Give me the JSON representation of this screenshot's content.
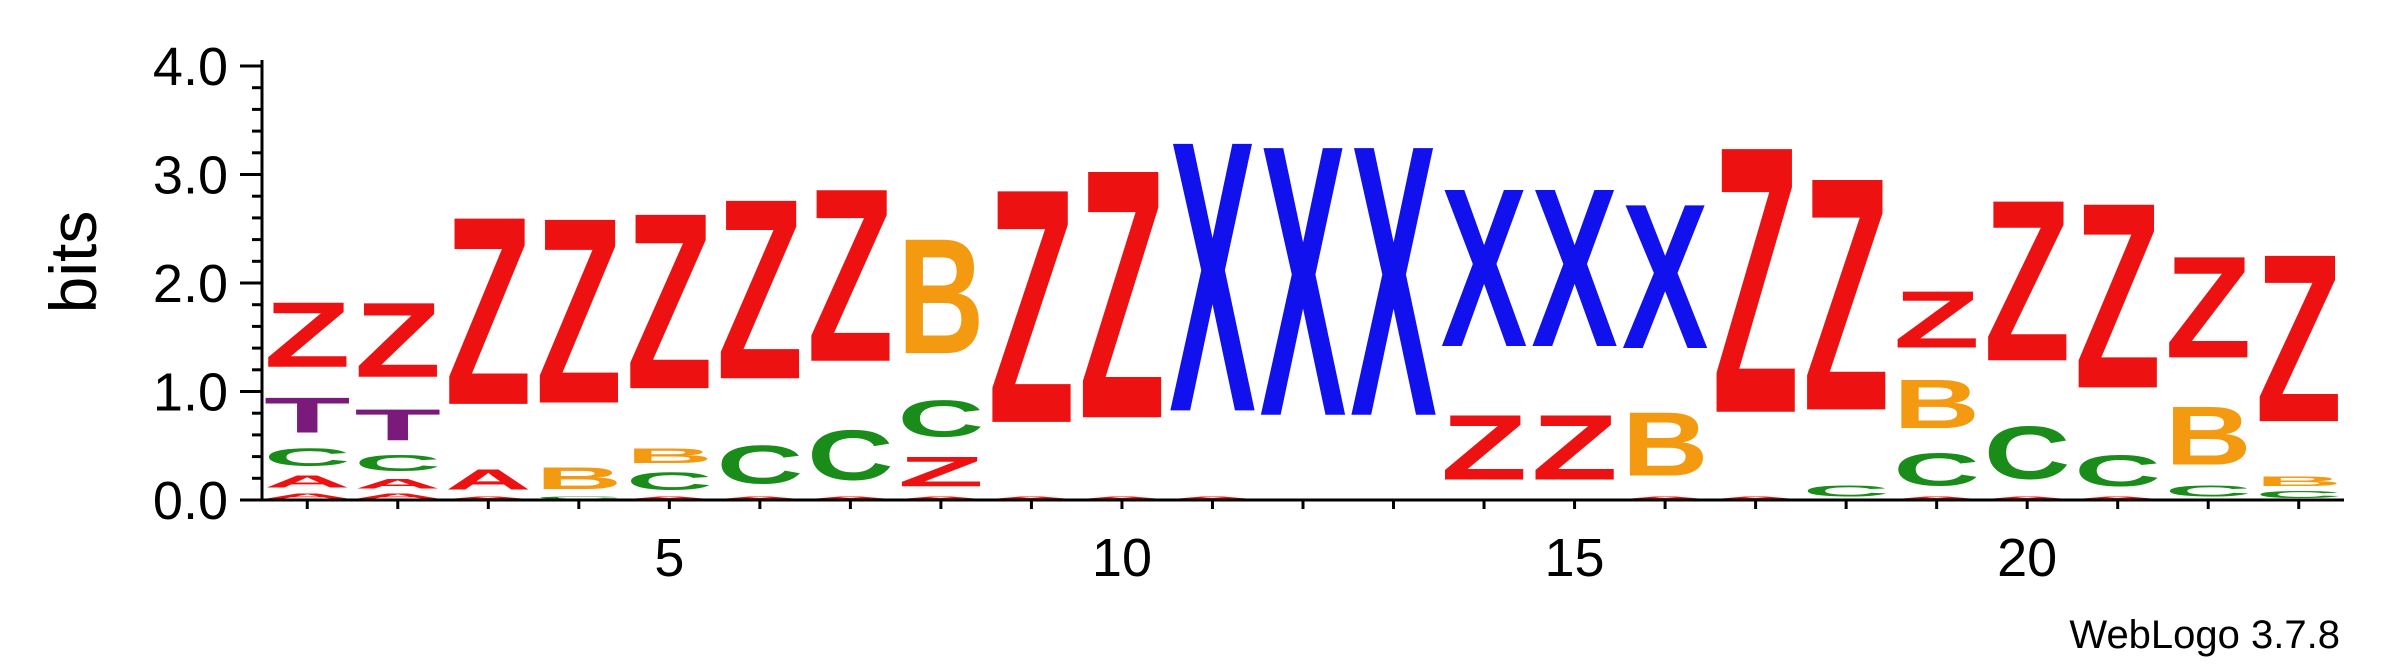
{
  "chart_data": {
    "type": "sequence-logo",
    "ylabel": "bits",
    "ylim": [
      0,
      4.0
    ],
    "yticks": [
      "0.0",
      "1.0",
      "2.0",
      "3.0",
      "4.0"
    ],
    "xticks": [
      5,
      10,
      15,
      20
    ],
    "xlim": [
      1,
      23
    ],
    "credit": "WebLogo 3.7.8",
    "colors": {
      "Z": "#ee1111",
      "X": "#1111ee",
      "B": "#f39a11",
      "C": "#1a8c1a",
      "T": "#7a1a7a",
      "A": "#ee1111"
    },
    "positions": [
      {
        "pos": 1,
        "stack": [
          [
            "A",
            0.08
          ],
          [
            "A",
            0.18
          ],
          [
            "C",
            0.26
          ],
          [
            "T",
            0.52
          ],
          [
            "Z",
            0.96
          ]
        ]
      },
      {
        "pos": 2,
        "stack": [
          [
            "A",
            0.08
          ],
          [
            "A",
            0.14
          ],
          [
            "C",
            0.24
          ],
          [
            "T",
            0.46
          ],
          [
            "Z",
            1.1
          ]
        ]
      },
      {
        "pos": 3,
        "stack": [
          [
            "A",
            0.04
          ],
          [
            "A",
            0.3
          ],
          [
            "Z",
            2.78
          ]
        ]
      },
      {
        "pos": 4,
        "stack": [
          [
            "C",
            0.04
          ],
          [
            "B",
            0.32
          ],
          [
            "Z",
            2.74
          ]
        ]
      },
      {
        "pos": 5,
        "stack": [
          [
            "A",
            0.04
          ],
          [
            "C",
            0.26
          ],
          [
            "B",
            0.22
          ],
          [
            "Z",
            2.6
          ]
        ]
      },
      {
        "pos": 6,
        "stack": [
          [
            "A",
            0.04
          ],
          [
            "C",
            0.56
          ],
          [
            "Z",
            2.66
          ]
        ]
      },
      {
        "pos": 7,
        "stack": [
          [
            "A",
            0.04
          ],
          [
            "C",
            0.74
          ],
          [
            "Z",
            2.56
          ]
        ]
      },
      {
        "pos": 8,
        "stack": [
          [
            "A",
            0.04
          ],
          [
            "Z",
            0.44
          ],
          [
            "C",
            0.54
          ],
          [
            "B",
            1.7
          ]
        ]
      },
      {
        "pos": 9,
        "stack": [
          [
            "A",
            0.04
          ],
          [
            "Z",
            3.46
          ]
        ]
      },
      {
        "pos": 10,
        "stack": [
          [
            "A",
            0.04
          ],
          [
            "Z",
            3.68
          ]
        ]
      },
      {
        "pos": 11,
        "stack": [
          [
            "A",
            0.04
          ],
          [
            "X",
            4.0
          ]
        ]
      },
      {
        "pos": 12,
        "stack": [
          [
            "X",
            4.0
          ]
        ]
      },
      {
        "pos": 13,
        "stack": [
          [
            "X",
            4.0
          ]
        ]
      },
      {
        "pos": 14,
        "stack": [
          [
            "Z",
            0.96
          ],
          [
            "X",
            2.34
          ]
        ]
      },
      {
        "pos": 15,
        "stack": [
          [
            "Z",
            0.96
          ],
          [
            "X",
            2.34
          ]
        ]
      },
      {
        "pos": 16,
        "stack": [
          [
            "A",
            0.04
          ],
          [
            "B",
            0.94
          ],
          [
            "X",
            2.14
          ]
        ]
      },
      {
        "pos": 17,
        "stack": [
          [
            "A",
            0.04
          ],
          [
            "Z",
            3.94
          ]
        ]
      },
      {
        "pos": 18,
        "stack": [
          [
            "C",
            0.16
          ],
          [
            "Z",
            3.44
          ]
        ]
      },
      {
        "pos": 19,
        "stack": [
          [
            "A",
            0.04
          ],
          [
            "C",
            0.48
          ],
          [
            "B",
            0.72
          ],
          [
            "Z",
            0.84
          ]
        ]
      },
      {
        "pos": 20,
        "stack": [
          [
            "A",
            0.04
          ],
          [
            "C",
            0.78
          ],
          [
            "Z",
            2.38
          ]
        ]
      },
      {
        "pos": 21,
        "stack": [
          [
            "A",
            0.04
          ],
          [
            "C",
            0.46
          ],
          [
            "Z",
            2.74
          ]
        ]
      },
      {
        "pos": 22,
        "stack": [
          [
            "C",
            0.16
          ],
          [
            "B",
            0.86
          ],
          [
            "Z",
            1.5
          ]
        ]
      },
      {
        "pos": 23,
        "stack": [
          [
            "C",
            0.1
          ],
          [
            "B",
            0.14
          ],
          [
            "Z",
            2.48
          ]
        ]
      }
    ]
  }
}
